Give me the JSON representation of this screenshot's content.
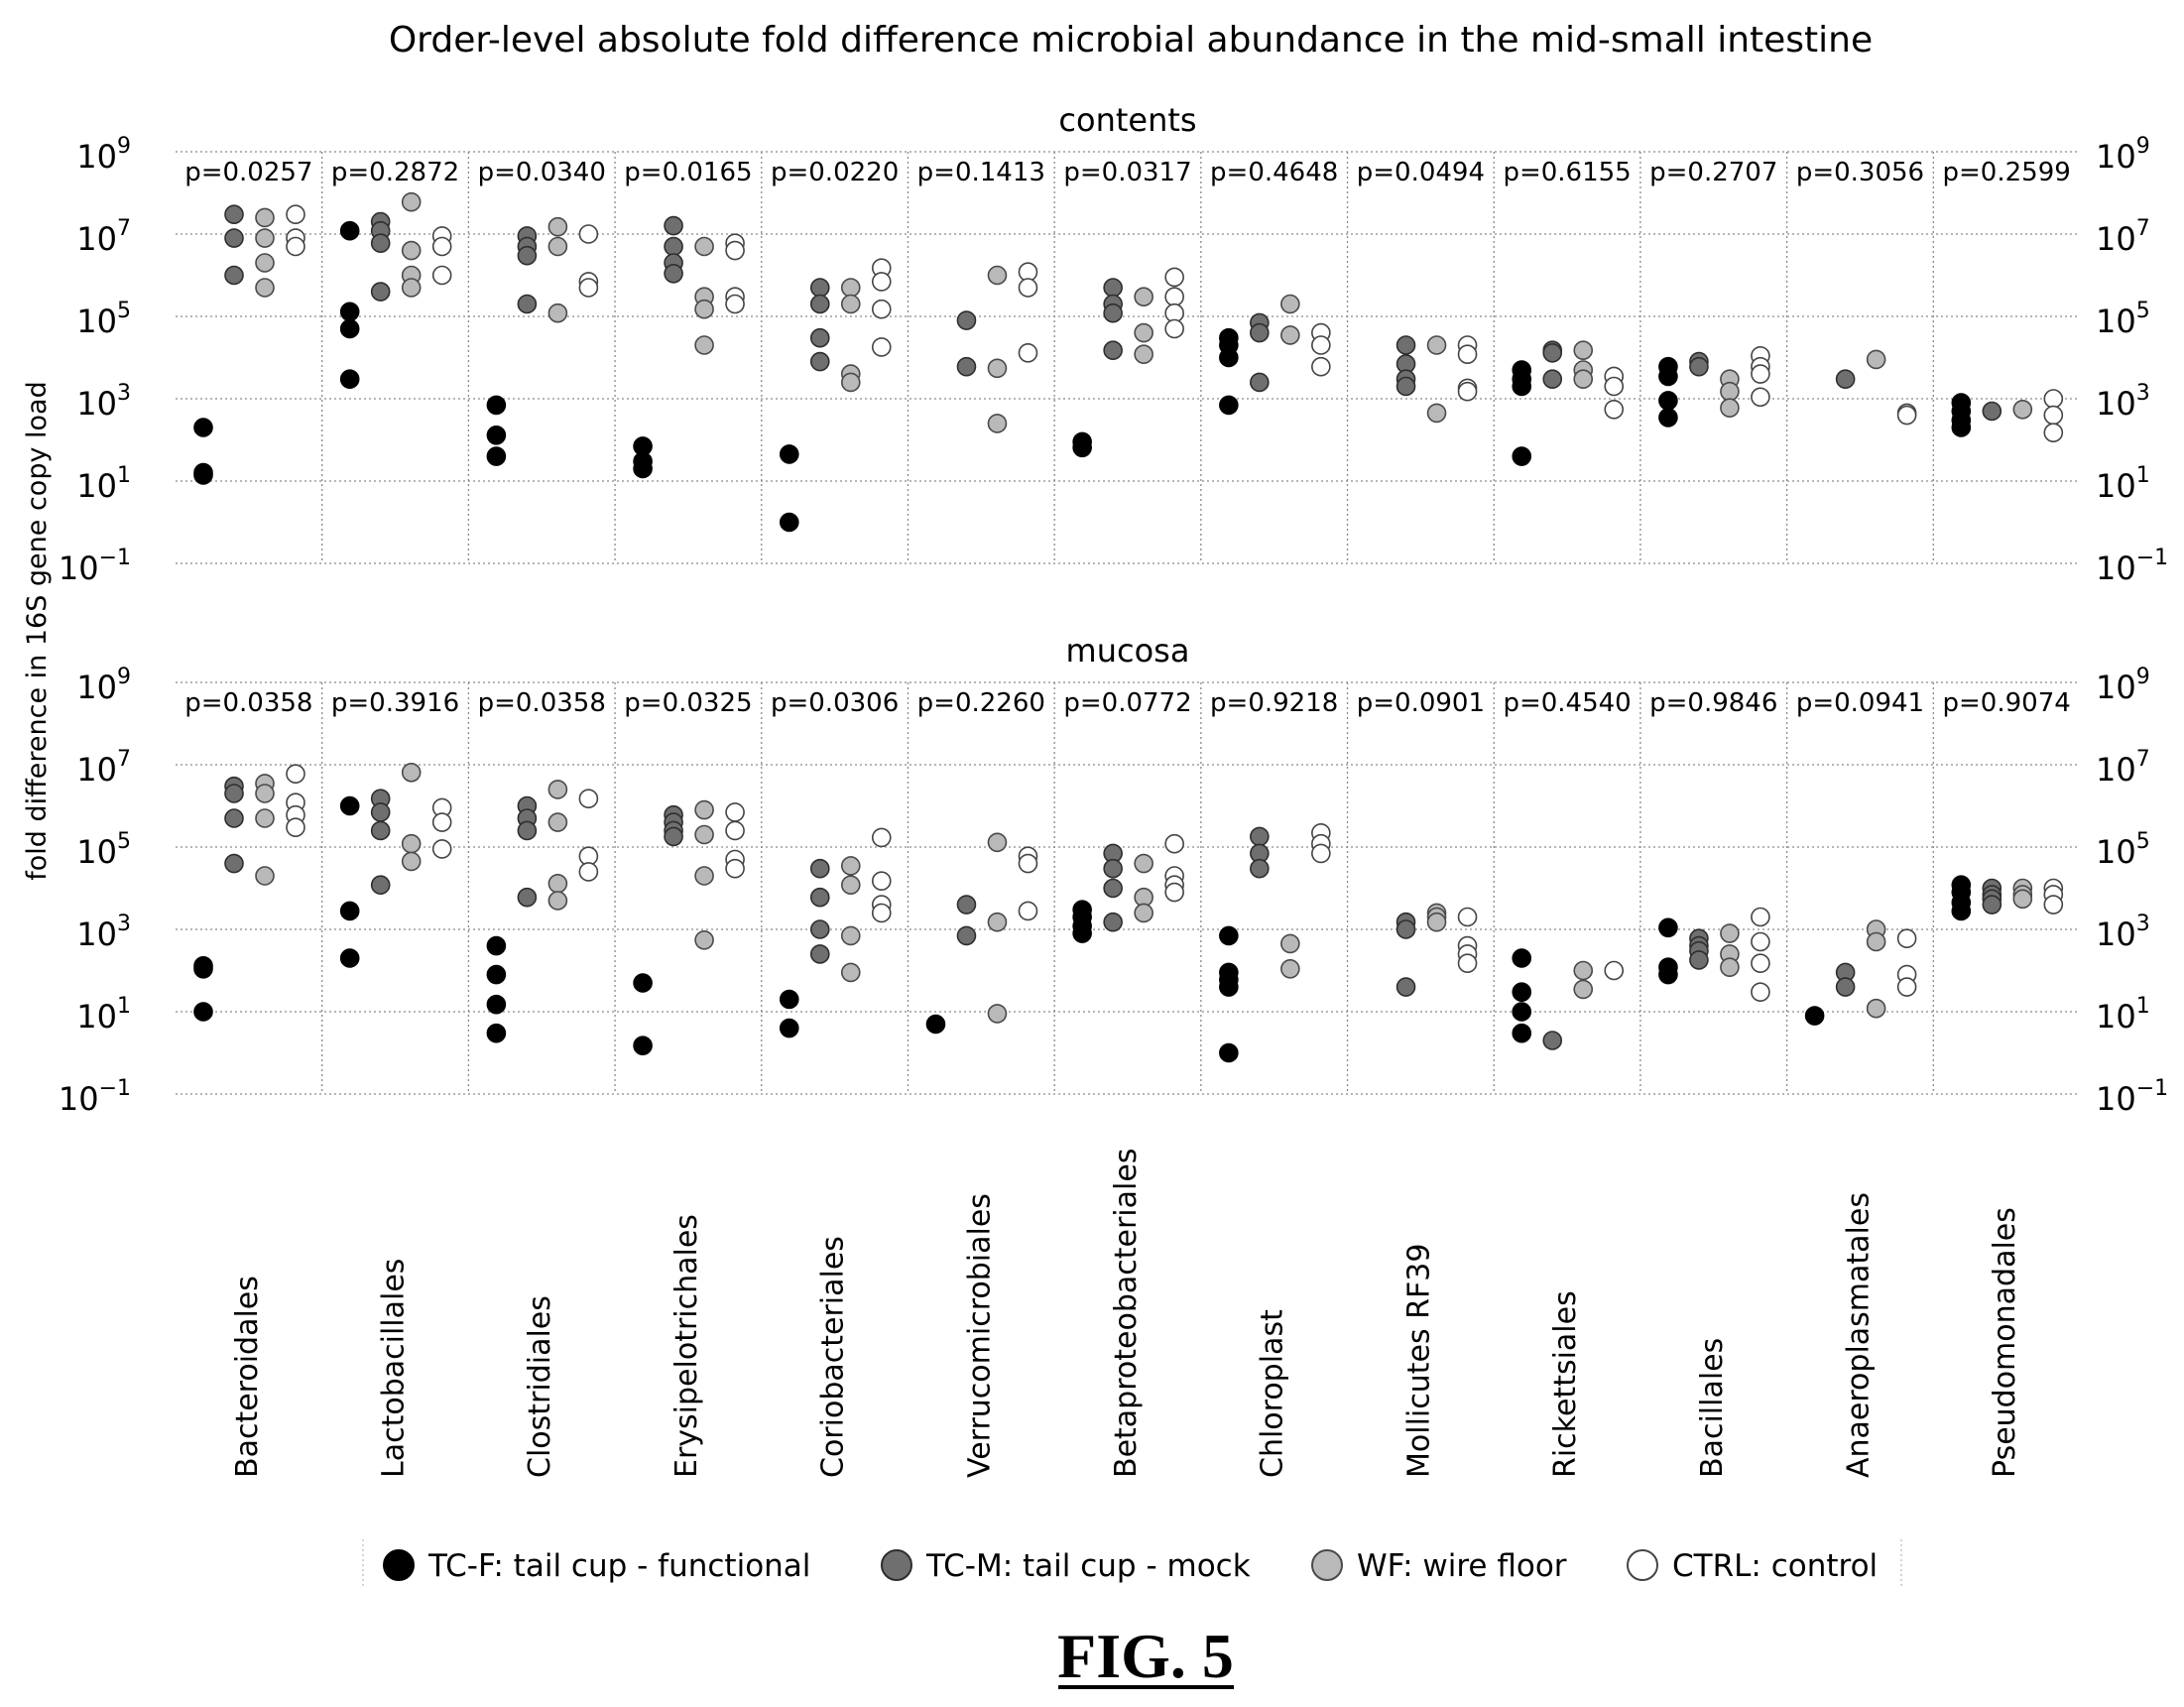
{
  "figure_label": "FIG. 5",
  "chart_data": {
    "type": "scatter",
    "title": "Order-level absolute fold difference microbial abundance in the mid-small intestine",
    "ylabel": "fold difference in 16S gene copy load",
    "yscale": "log",
    "ylim": [
      0.1,
      1000000000
    ],
    "y_ticks": [
      {
        "base": "10",
        "exp": "9"
      },
      {
        "base": "10",
        "exp": "7"
      },
      {
        "base": "10",
        "exp": "5"
      },
      {
        "base": "10",
        "exp": "3"
      },
      {
        "base": "10",
        "exp": "1"
      },
      {
        "base": "10",
        "exp": "−1"
      }
    ],
    "y_tick_values": [
      1000000000,
      10000000,
      100000,
      1000,
      10,
      0.1
    ],
    "categories": [
      "Bacteroidales",
      "Lactobacillales",
      "Clostridiales",
      "Erysipelotrichales",
      "Coriobacteriales",
      "Verrucomicrobiales",
      "Betaproteobacteriales",
      "Chloroplast",
      "Mollicutes RF39",
      "Rickettsiales",
      "Bacillales",
      "Anaeroplasmatales",
      "Pseudomonadales"
    ],
    "series": [
      {
        "name": "TC-F: tail cup - functional",
        "color": "#000000"
      },
      {
        "name": "TC-M: tail cup - mock",
        "color": "#6f6f6f"
      },
      {
        "name": "WF: wire floor",
        "color": "#b9b9b9"
      },
      {
        "name": "CTRL: control",
        "color": "#ffffff"
      }
    ],
    "panels": [
      {
        "title": "contents",
        "pvalues": [
          "p=0.0257",
          "p=0.2872",
          "p=0.0340",
          "p=0.0165",
          "p=0.0220",
          "p=0.1413",
          "p=0.0317",
          "p=0.4648",
          "p=0.0494",
          "p=0.6155",
          "p=0.2707",
          "p=0.3056",
          "p=0.2599"
        ],
        "points": [
          [
            [
              200,
              14,
              16
            ],
            [
              30000000,
              8000000,
              1000000
            ],
            [
              25000000,
              8000000,
              2000000,
              500000
            ],
            [
              30000000,
              8000000,
              5000000
            ]
          ],
          [
            [
              12000000,
              130000,
              50000,
              3000
            ],
            [
              20000000,
              12000000,
              6000000,
              400000
            ],
            [
              60000000,
              4000000,
              1000000,
              500000
            ],
            [
              9000000,
              5000000,
              1000000
            ]
          ],
          [
            [
              700,
              130,
              40
            ],
            [
              9000000,
              5000000,
              3000000,
              200000
            ],
            [
              15000000,
              5000000,
              120000
            ],
            [
              10000000,
              700000,
              500000
            ]
          ],
          [
            [
              70,
              30,
              20
            ],
            [
              16000000,
              5000000,
              2000000,
              1100000
            ],
            [
              5000000,
              300000,
              150000,
              20000
            ],
            [
              6000000,
              4000000,
              300000,
              200000
            ]
          ],
          [
            [
              45,
              1
            ],
            [
              500000,
              200000,
              30000,
              8000
            ],
            [
              500000,
              200000,
              4000,
              2500
            ],
            [
              1500000,
              700000,
              150000,
              18000
            ]
          ],
          [
            [],
            [
              80000,
              6000
            ],
            [
              1000000,
              5500,
              250
            ],
            [
              1200000,
              500000,
              13000
            ]
          ],
          [
            [
              90,
              65
            ],
            [
              500000,
              200000,
              120000,
              15000
            ],
            [
              300000,
              40000,
              12000
            ],
            [
              900000,
              300000,
              120000,
              50000
            ]
          ],
          [
            [
              30000,
              20000,
              10000,
              700
            ],
            [
              70000,
              40000,
              2500
            ],
            [
              200000,
              35000
            ],
            [
              40000,
              20000,
              6000
            ]
          ],
          [
            [],
            [
              20000,
              7000,
              3000,
              2000
            ],
            [
              20000,
              450
            ],
            [
              20000,
              12000,
              1800,
              1500
            ]
          ],
          [
            [
              5000,
              3000,
              2000,
              40
            ],
            [
              15000,
              13000,
              3000
            ],
            [
              15000,
              5000,
              3000
            ],
            [
              3500,
              2000,
              550
            ]
          ],
          [
            [
              6000,
              3500,
              900,
              350
            ],
            [
              8000,
              6000
            ],
            [
              3000,
              1500,
              600
            ],
            [
              11000,
              6000,
              4000,
              1100
            ]
          ],
          [
            [],
            [
              3000
            ],
            [
              9000
            ],
            [
              450,
              400
            ]
          ],
          [
            [
              800,
              500,
              300,
              200
            ],
            [
              500
            ],
            [
              550
            ],
            [
              1000,
              400,
              150
            ]
          ]
        ]
      },
      {
        "title": "mucosa",
        "pvalues": [
          "p=0.0358",
          "p=0.3916",
          "p=0.0358",
          "p=0.0325",
          "p=0.0306",
          "p=0.2260",
          "p=0.0772",
          "p=0.9218",
          "p=0.0901",
          "p=0.4540",
          "p=0.9846",
          "p=0.0941",
          "p=0.9074"
        ],
        "points": [
          [
            [
              130,
              110,
              10
            ],
            [
              3000000,
              2000000,
              500000,
              40000
            ],
            [
              3500000,
              2000000,
              500000,
              20000
            ],
            [
              6000000,
              1200000,
              600000,
              300000
            ]
          ],
          [
            [
              1000000,
              2800,
              200
            ],
            [
              1500000,
              700000,
              250000,
              12000
            ],
            [
              6500000,
              120000,
              45000
            ],
            [
              900000,
              400000,
              90000
            ]
          ],
          [
            [
              400,
              80,
              15,
              3
            ],
            [
              1000000,
              500000,
              250000,
              6000
            ],
            [
              2500000,
              400000,
              13000,
              5000
            ],
            [
              1500000,
              60000,
              25000
            ]
          ],
          [
            [
              50,
              1.5
            ],
            [
              600000,
              400000,
              250000,
              180000
            ],
            [
              800000,
              200000,
              20000,
              550
            ],
            [
              700000,
              250000,
              50000,
              30000
            ]
          ],
          [
            [
              20,
              4
            ],
            [
              30000,
              6000,
              1000,
              250
            ],
            [
              35000,
              12000,
              700,
              90
            ],
            [
              170000,
              15000,
              4000,
              2500
            ]
          ],
          [
            [
              5
            ],
            [
              4000,
              700
            ],
            [
              130000,
              1500,
              9
            ],
            [
              60000,
              40000,
              2800
            ]
          ],
          [
            [
              3000,
              2000,
              1200,
              800
            ],
            [
              70000,
              30000,
              10000,
              1500
            ],
            [
              40000,
              6000,
              2500
            ],
            [
              120000,
              20000,
              12000,
              8000
            ]
          ],
          [
            [
              700,
              90,
              60,
              40,
              1
            ],
            [
              180000,
              70000,
              30000
            ],
            [
              450,
              110
            ],
            [
              220000,
              120000,
              70000
            ]
          ],
          [
            [],
            [
              1500,
              1000,
              40
            ],
            [
              2500,
              2000,
              1500
            ],
            [
              2000,
              400,
              250,
              150
            ]
          ],
          [
            [
              200,
              30,
              10,
              3
            ],
            [
              2
            ],
            [
              100,
              35
            ],
            [
              100
            ]
          ],
          [
            [
              1100,
              120,
              80
            ],
            [
              600,
              400,
              300,
              180
            ],
            [
              800,
              250,
              120
            ],
            [
              2000,
              500,
              150,
              30
            ]
          ],
          [
            [
              8
            ],
            [
              90,
              40
            ],
            [
              1000,
              500,
              12
            ],
            [
              600,
              80,
              40
            ]
          ],
          [
            [
              12000,
              8000,
              4500,
              2800
            ],
            [
              10000,
              7000,
              5500,
              4000
            ],
            [
              10000,
              7000,
              5500
            ],
            [
              10000,
              7000,
              4000
            ]
          ]
        ]
      }
    ]
  }
}
